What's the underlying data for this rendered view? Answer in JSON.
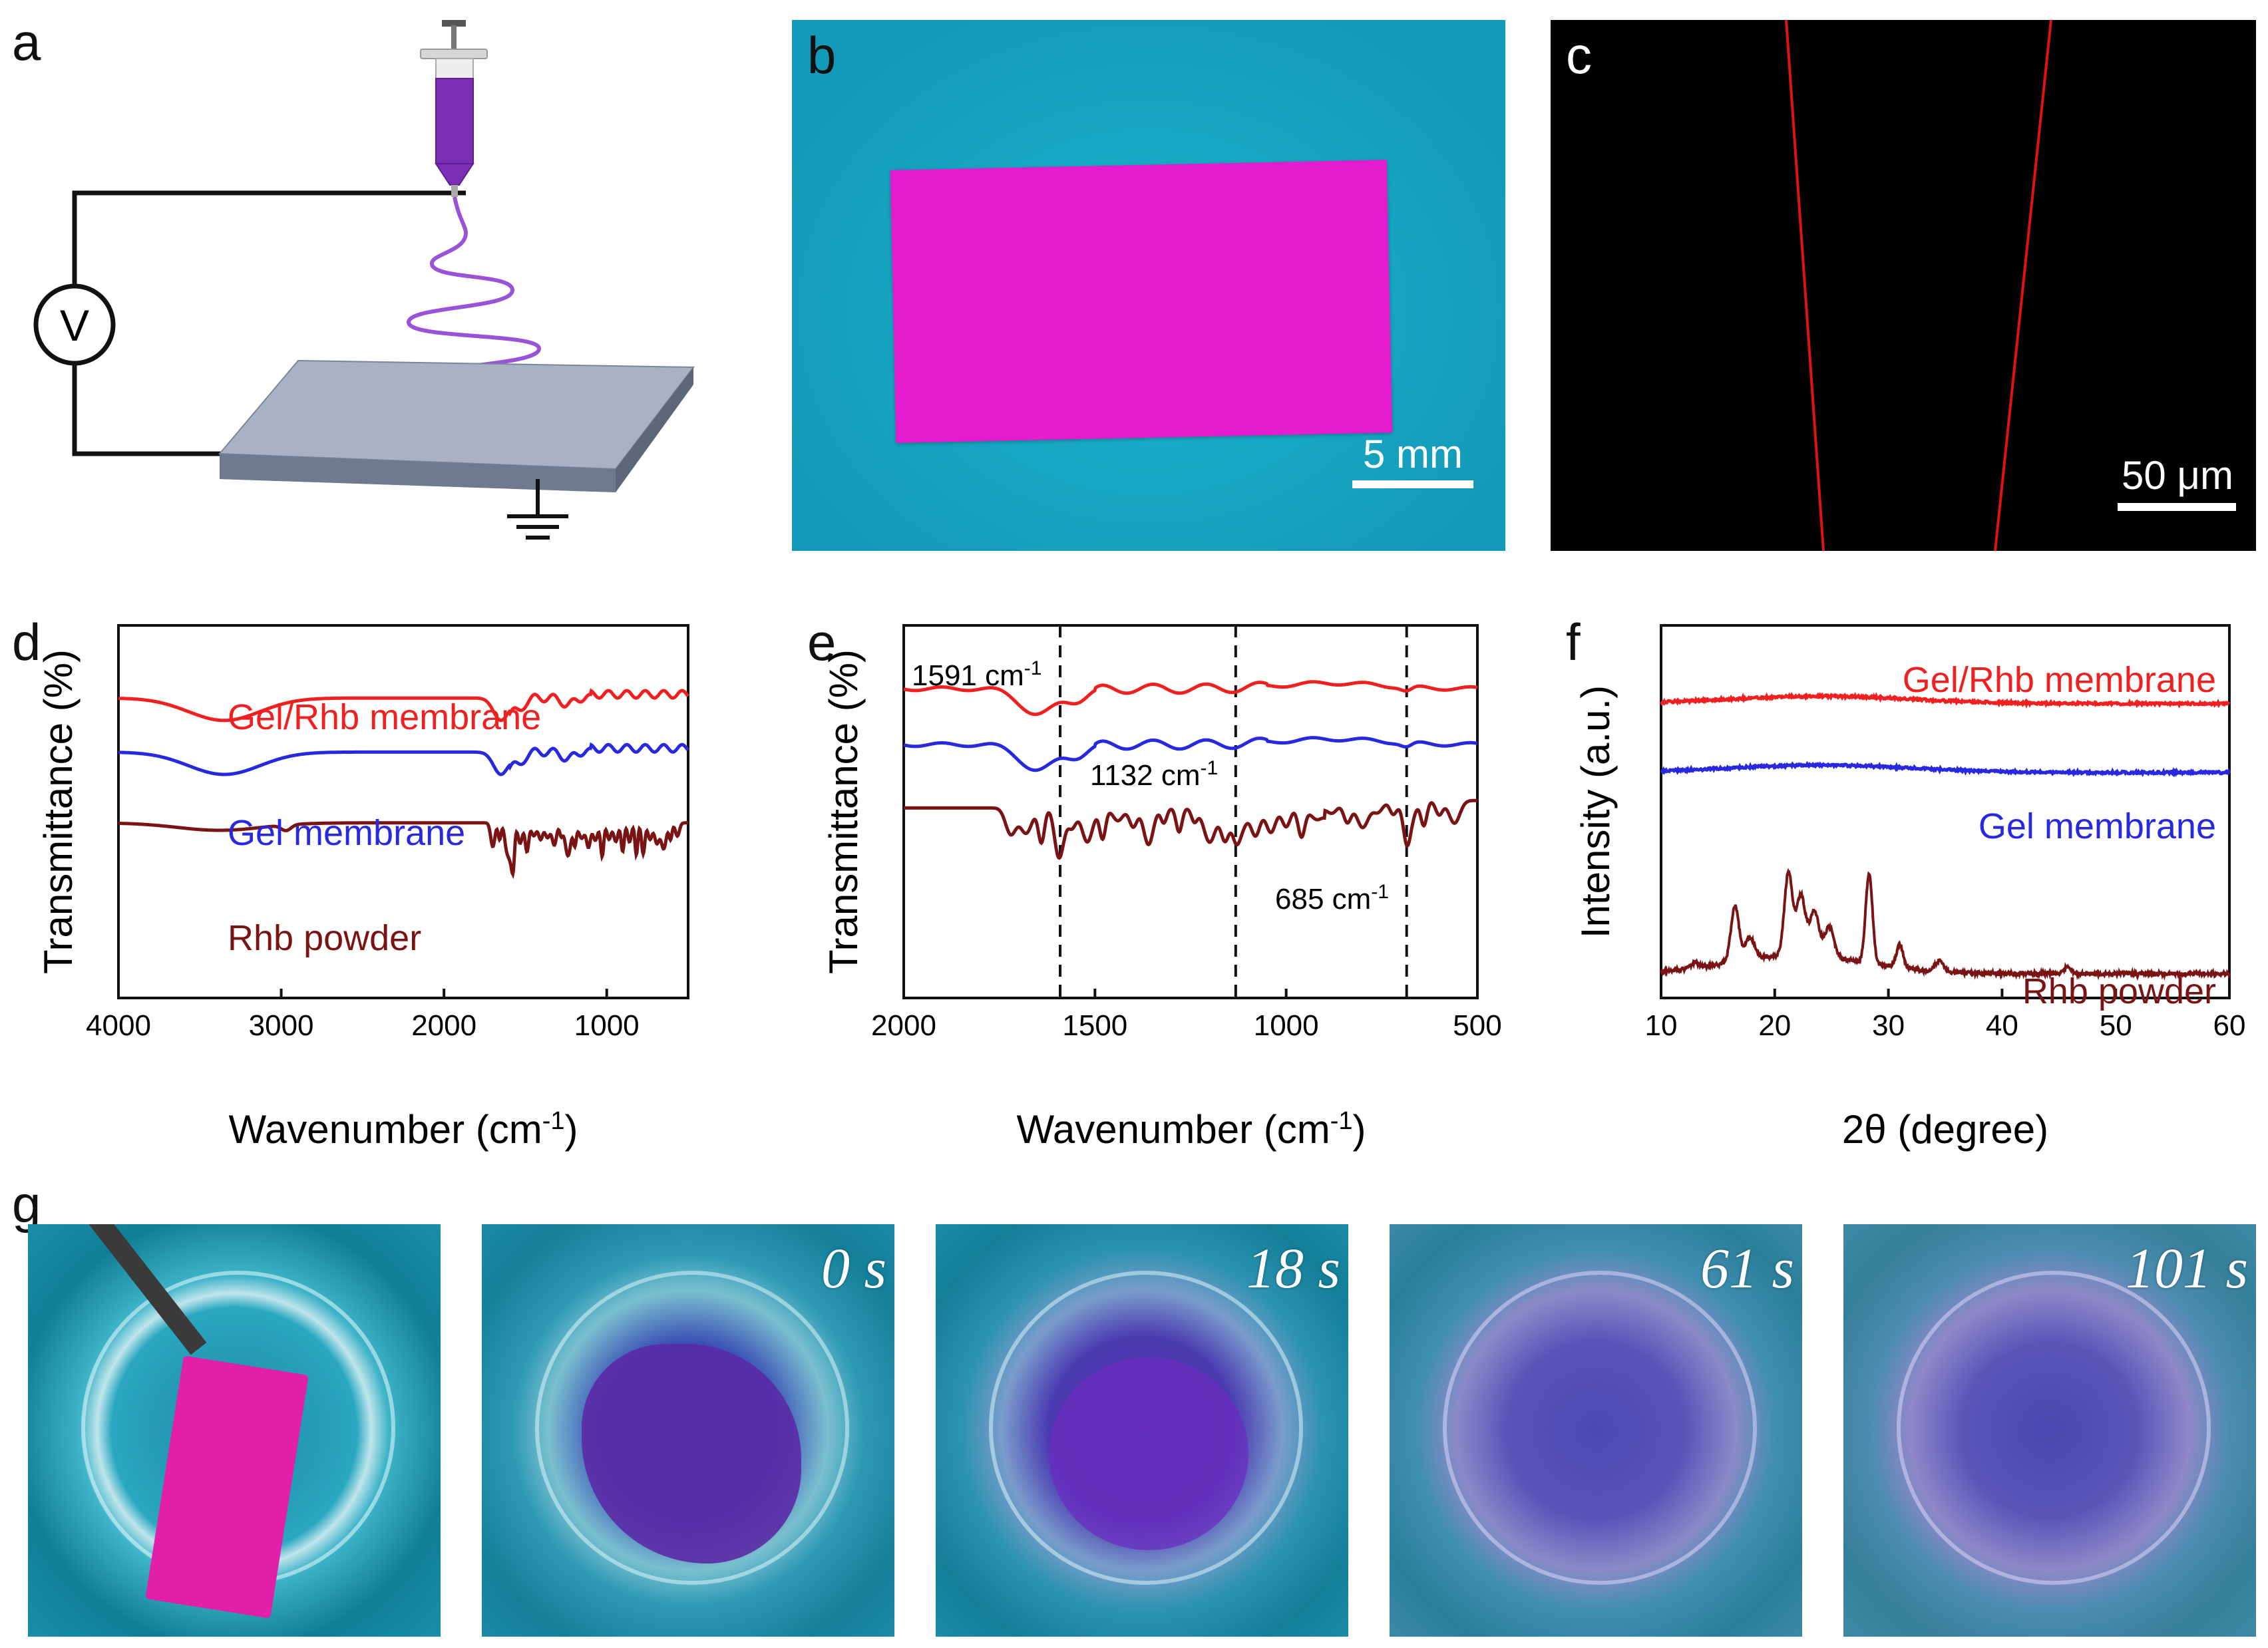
{
  "panels": {
    "a": "a",
    "b": "b",
    "c": "c",
    "d": "d",
    "e": "e",
    "f": "f",
    "g": "g"
  },
  "schematic": {
    "voltage_symbol": "V"
  },
  "scale_bars": {
    "b": "5 mm",
    "c": "50 μm"
  },
  "time_labels": [
    "0 s",
    "18 s",
    "61 s",
    "101 s"
  ],
  "colors": {
    "membrane_magenta": "#e31ad0",
    "photo_teal": "#16a4c2",
    "series_red": "#f02020",
    "series_blue": "#2828e0",
    "series_dark": "#7a1414"
  },
  "chart_data": [
    {
      "id": "d",
      "type": "line",
      "title": "",
      "xlabel": "Wavenumber (cm",
      "xlabel_sup": "-1",
      "xlabel_close": ")",
      "ylabel": "Transmittance (%)",
      "xlim": [
        4000,
        500
      ],
      "x_ticks": [
        "4000",
        "3000",
        "2000",
        "1000"
      ],
      "x_tick_values": [
        4000,
        3000,
        2000,
        1000
      ],
      "series": [
        {
          "name": "Gel/Rhb membrane",
          "color": "#f02020"
        },
        {
          "name": "Gel membrane",
          "color": "#2828e0"
        },
        {
          "name": "Rhb powder",
          "color": "#7a1414"
        }
      ]
    },
    {
      "id": "e",
      "type": "line",
      "xlabel": "Wavenumber (cm",
      "xlabel_sup": "-1",
      "xlabel_close": ")",
      "ylabel": "Transmittance (%)",
      "xlim": [
        2000,
        500
      ],
      "x_ticks": [
        "2000",
        "1500",
        "1000",
        "500"
      ],
      "x_tick_values": [
        2000,
        1500,
        1000,
        500
      ],
      "reference_lines": [
        1591,
        1132,
        685
      ],
      "annotations": [
        {
          "value": "1591 cm",
          "sup": "-1"
        },
        {
          "value": "1132 cm",
          "sup": "-1"
        },
        {
          "value": "685 cm",
          "sup": "-1"
        }
      ],
      "series": [
        {
          "name": "Gel/Rhb membrane",
          "color": "#f02020"
        },
        {
          "name": "Gel membrane",
          "color": "#2828e0"
        },
        {
          "name": "Rhb powder",
          "color": "#7a1414"
        }
      ]
    },
    {
      "id": "f",
      "type": "line",
      "xlabel": "2θ (degree)",
      "ylabel": "Intensity (a.u.)",
      "xlim": [
        10,
        60
      ],
      "x_ticks": [
        "10",
        "20",
        "30",
        "40",
        "50",
        "60"
      ],
      "x_tick_values": [
        10,
        20,
        30,
        40,
        50,
        60
      ],
      "series": [
        {
          "name": "Gel/Rhb membrane",
          "color": "#f02020"
        },
        {
          "name": "Gel membrane",
          "color": "#2828e0"
        },
        {
          "name": "Rhb powder",
          "color": "#7a1414"
        }
      ]
    }
  ]
}
